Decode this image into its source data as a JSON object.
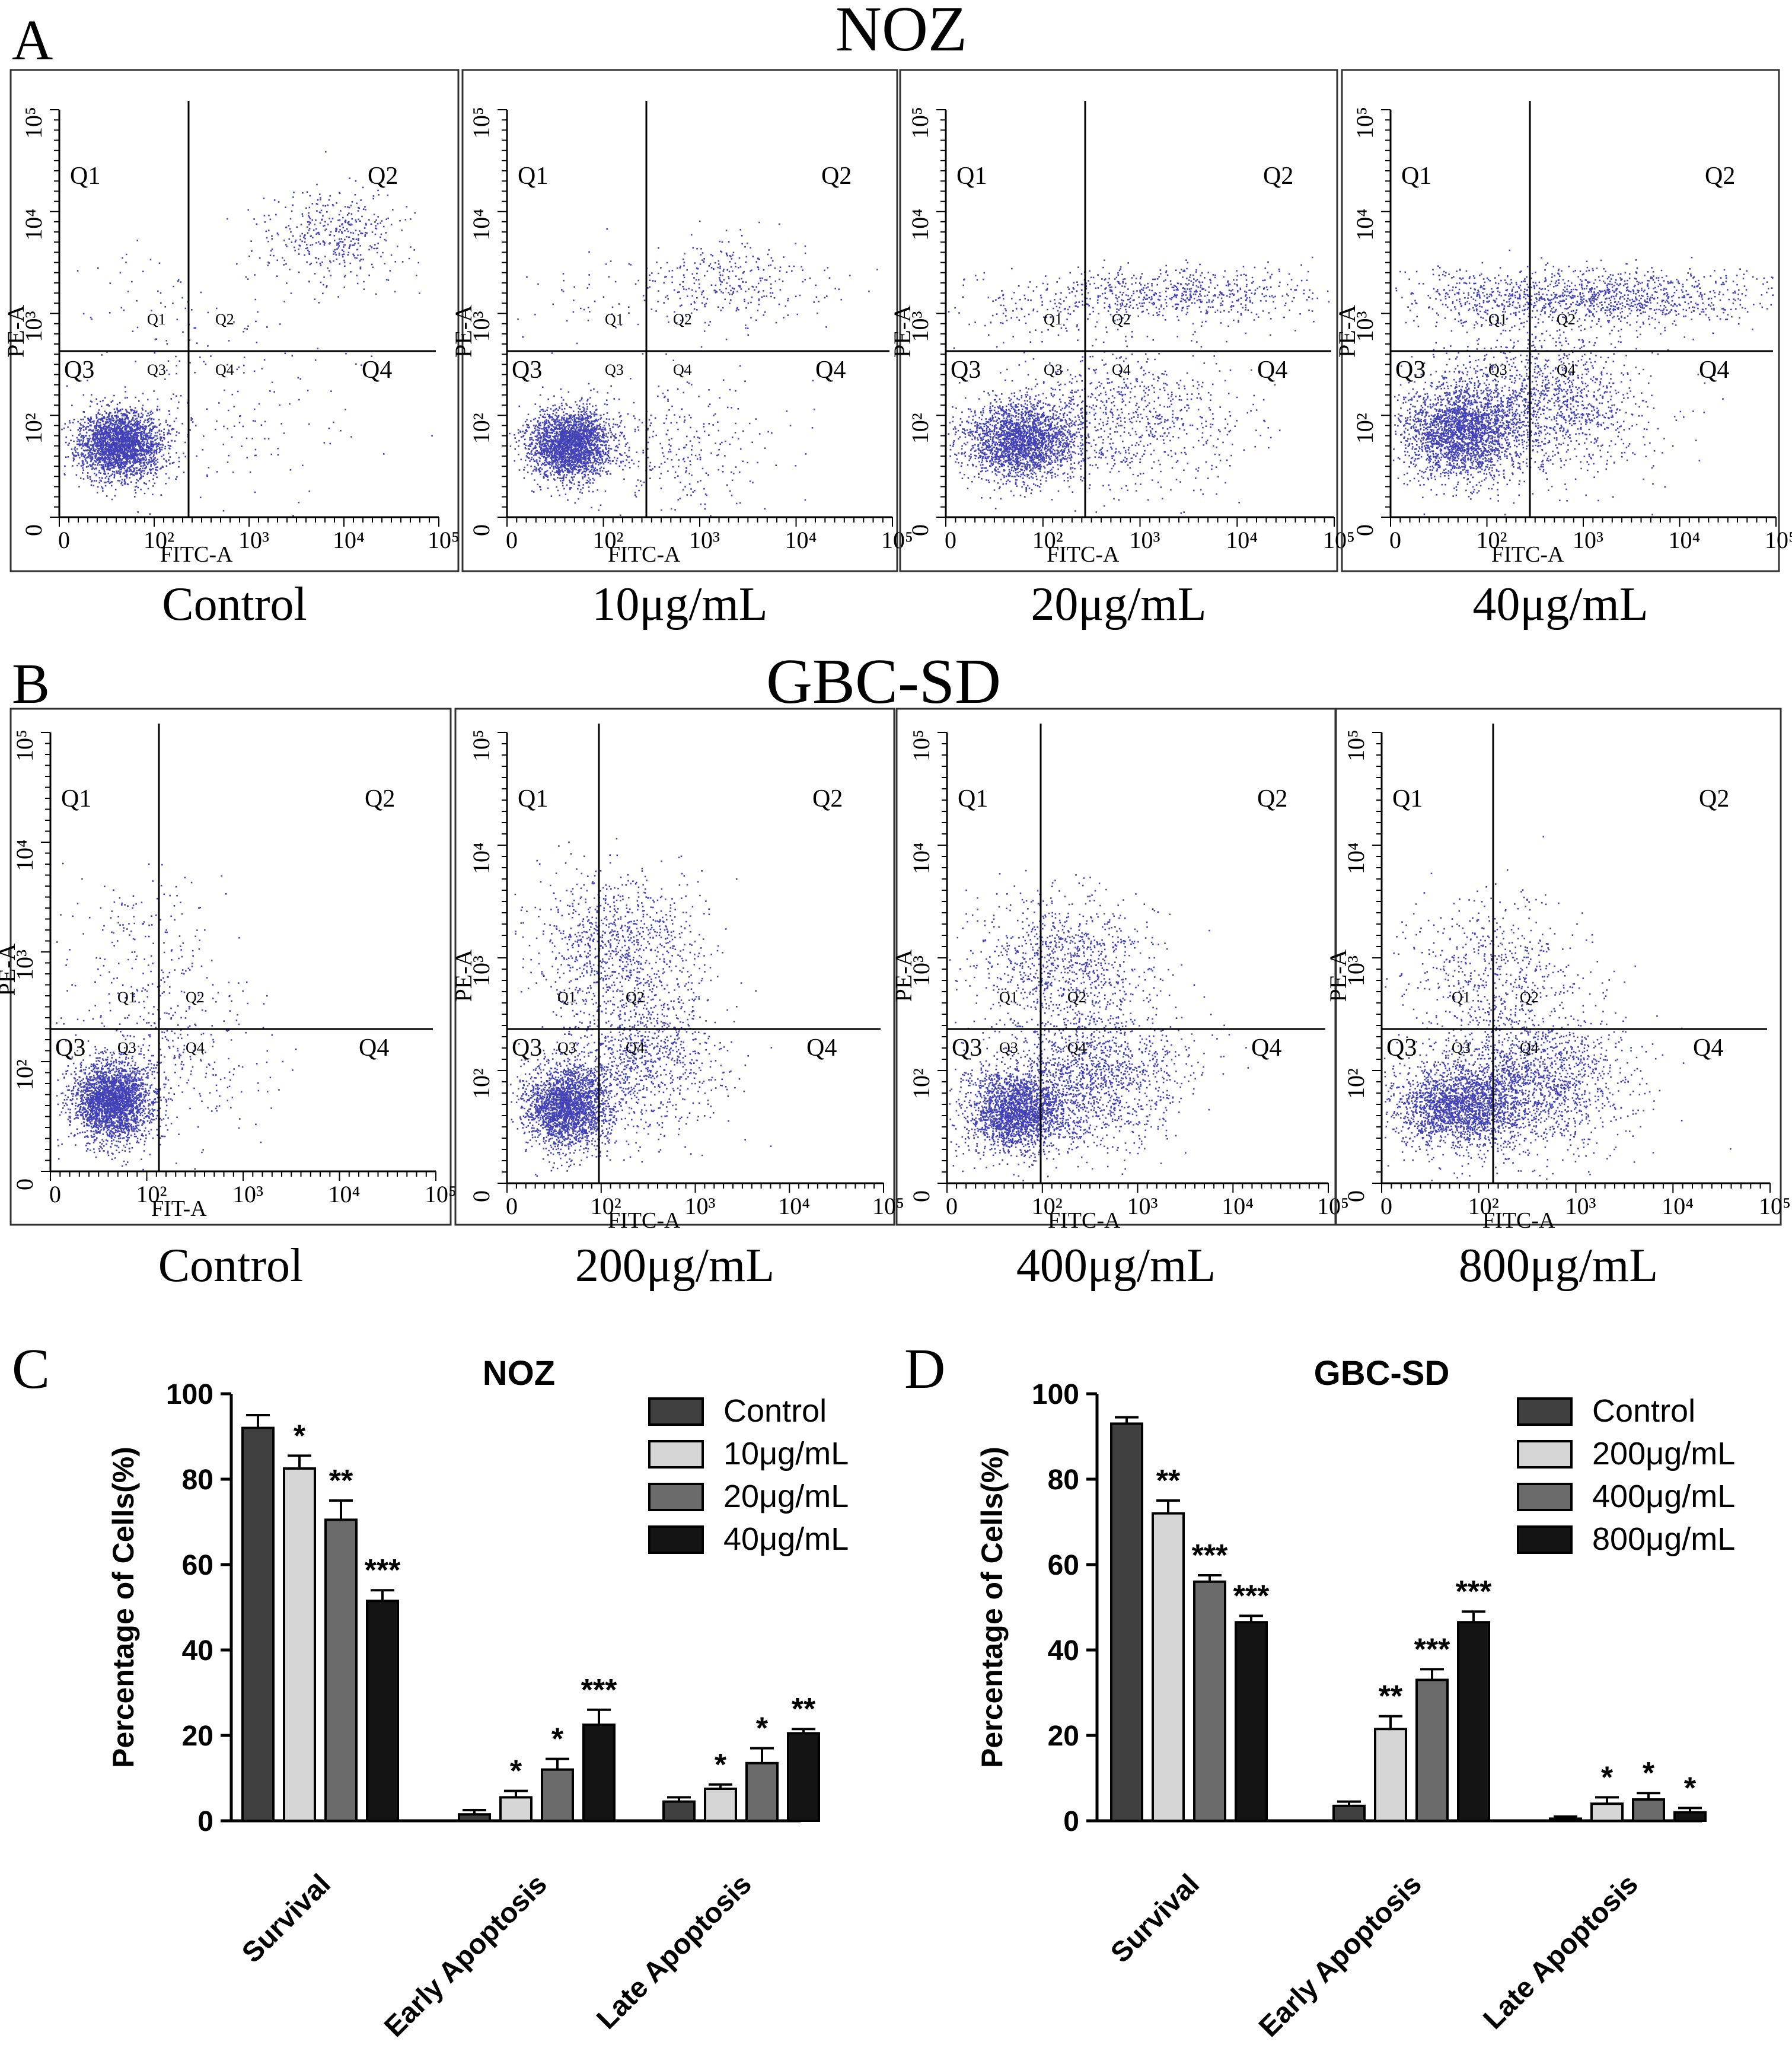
{
  "panel_labels": {
    "a": "A",
    "b": "B",
    "c": "C",
    "d": "D"
  },
  "noz_title": "NOZ",
  "gbc_title": "GBC-SD",
  "colors": {
    "dot": "#2222aa",
    "cluster": "#1b2ea0",
    "frame": "#000000",
    "axis": "#000000"
  },
  "flow": {
    "quadrant_labels": {
      "q1": "Q1",
      "q2": "Q2",
      "q3": "Q3",
      "q4": "Q4"
    },
    "y_axis_label": "PE-A",
    "y_ticks": [
      "0",
      "10²",
      "10³",
      "10⁴",
      "10⁵"
    ],
    "x_ticks": [
      "0",
      "10²",
      "10³",
      "10⁴",
      "10⁵"
    ],
    "noz": [
      {
        "caption": "Control",
        "x_label": "FITC-A",
        "dist": "control",
        "seed": 11
      },
      {
        "caption": "10μg/mL",
        "x_label": "FITC-A",
        "dist": "low",
        "seed": 23
      },
      {
        "caption": "20μg/mL",
        "x_label": "FITC-A",
        "dist": "mid",
        "seed": 37
      },
      {
        "caption": "40μg/mL",
        "x_label": "FITC-A",
        "dist": "high",
        "seed": 41
      }
    ],
    "gbc": [
      {
        "caption": "Control",
        "x_label": "FIT-A",
        "dist": "g_control",
        "seed": 53
      },
      {
        "caption": "200μg/mL",
        "x_label": "FITC-A",
        "dist": "g_low",
        "seed": 67
      },
      {
        "caption": "400μg/mL",
        "x_label": "FITC-A",
        "dist": "g_mid",
        "seed": 71
      },
      {
        "caption": "800μg/mL",
        "x_label": "FITC-A",
        "dist": "g_high",
        "seed": 89
      }
    ]
  },
  "chart_data": [
    {
      "type": "bar",
      "title": "NOZ",
      "ylabel": "Percentage of Cells(%)",
      "xlabel": "",
      "ylim": [
        0,
        100
      ],
      "yticks": [
        0,
        20,
        40,
        60,
        80,
        100
      ],
      "categories": [
        "Survival",
        "Early Apoptosis",
        "Late Apoptosis"
      ],
      "series": [
        {
          "name": "Control",
          "fill": "#404040",
          "values": [
            92,
            1.5,
            4.5
          ],
          "errors": [
            3,
            1,
            1
          ],
          "sig": [
            "",
            "",
            ""
          ]
        },
        {
          "name": "10μg/mL",
          "fill": "#d6d6d6",
          "values": [
            82.5,
            5.5,
            7.5
          ],
          "errors": [
            3,
            1.5,
            1
          ],
          "sig": [
            "*",
            "*",
            "*"
          ]
        },
        {
          "name": "20μg/mL",
          "fill": "#6b6b6b",
          "values": [
            70.5,
            12,
            13.5
          ],
          "errors": [
            4.5,
            2.5,
            3.5
          ],
          "sig": [
            "**",
            "*",
            "*"
          ]
        },
        {
          "name": "40μg/mL",
          "fill": "#141414",
          "values": [
            51.5,
            22.5,
            20.5
          ],
          "errors": [
            2.5,
            3.5,
            1
          ],
          "sig": [
            "***",
            "***",
            "**"
          ]
        }
      ]
    },
    {
      "type": "bar",
      "title": "GBC-SD",
      "ylabel": "Percentage of Cells(%)",
      "xlabel": "",
      "ylim": [
        0,
        100
      ],
      "yticks": [
        0,
        20,
        40,
        60,
        80,
        100
      ],
      "categories": [
        "Survival",
        "Early Apoptosis",
        "Late Apoptosis"
      ],
      "series": [
        {
          "name": "Control",
          "fill": "#404040",
          "values": [
            93,
            3.5,
            0.5
          ],
          "errors": [
            1.5,
            1,
            0.5
          ],
          "sig": [
            "",
            "",
            ""
          ]
        },
        {
          "name": "200μg/mL",
          "fill": "#d6d6d6",
          "values": [
            72,
            21.5,
            4
          ],
          "errors": [
            3,
            3,
            1.5
          ],
          "sig": [
            "**",
            "**",
            "*"
          ]
        },
        {
          "name": "400μg/mL",
          "fill": "#6b6b6b",
          "values": [
            56,
            33,
            5
          ],
          "errors": [
            1.5,
            2.5,
            1.5
          ],
          "sig": [
            "***",
            "***",
            "*"
          ]
        },
        {
          "name": "800μg/mL",
          "fill": "#141414",
          "values": [
            46.5,
            46.5,
            2
          ],
          "errors": [
            1.5,
            2.5,
            1
          ],
          "sig": [
            "***",
            "***",
            "*"
          ]
        }
      ]
    }
  ]
}
